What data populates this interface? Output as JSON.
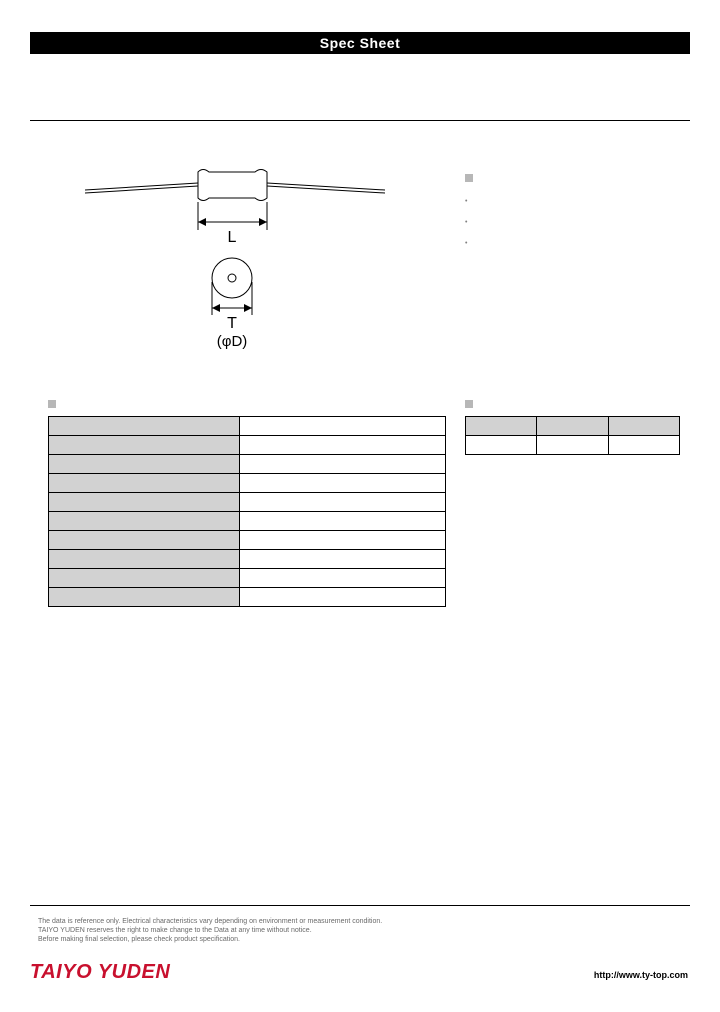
{
  "header": {
    "title": "Spec Sheet"
  },
  "diagram": {
    "label_L": "L",
    "label_T": "T",
    "label_phiD": "(φD)",
    "body_fill": "#ffffff",
    "body_stroke": "#000000",
    "stroke_width": 1
  },
  "features": {
    "heading": "",
    "items": [
      "•",
      "•",
      "•"
    ]
  },
  "electrical": {
    "heading": "",
    "rows": [
      {
        "label": "",
        "value": ""
      },
      {
        "label": "",
        "value": ""
      },
      {
        "label": "",
        "value": ""
      },
      {
        "label": "",
        "value": ""
      },
      {
        "label": "",
        "value": ""
      },
      {
        "label": "",
        "value": ""
      },
      {
        "label": "",
        "value": ""
      },
      {
        "label": "",
        "value": ""
      },
      {
        "label": "",
        "value": ""
      },
      {
        "label": "",
        "value": ""
      }
    ],
    "label_bg": "#d2d2d2",
    "border_color": "#000000"
  },
  "mechanical": {
    "heading": "",
    "row1": [
      "",
      "",
      ""
    ],
    "row2": [
      "",
      "",
      ""
    ],
    "hdr_bg": "#d2d2d2"
  },
  "disclaimer": {
    "line1": "The data is reference only. Electrical characteristics vary depending on environment or measurement condition.",
    "line2": "TAIYO YUDEN reserves the right to make change to the Data at any time without notice.",
    "line3": "Before making final selection, please check product specification."
  },
  "footer": {
    "logo": "TAIYO YUDEN",
    "logo_color": "#c8102e",
    "url": "http://www.ty-top.com"
  }
}
